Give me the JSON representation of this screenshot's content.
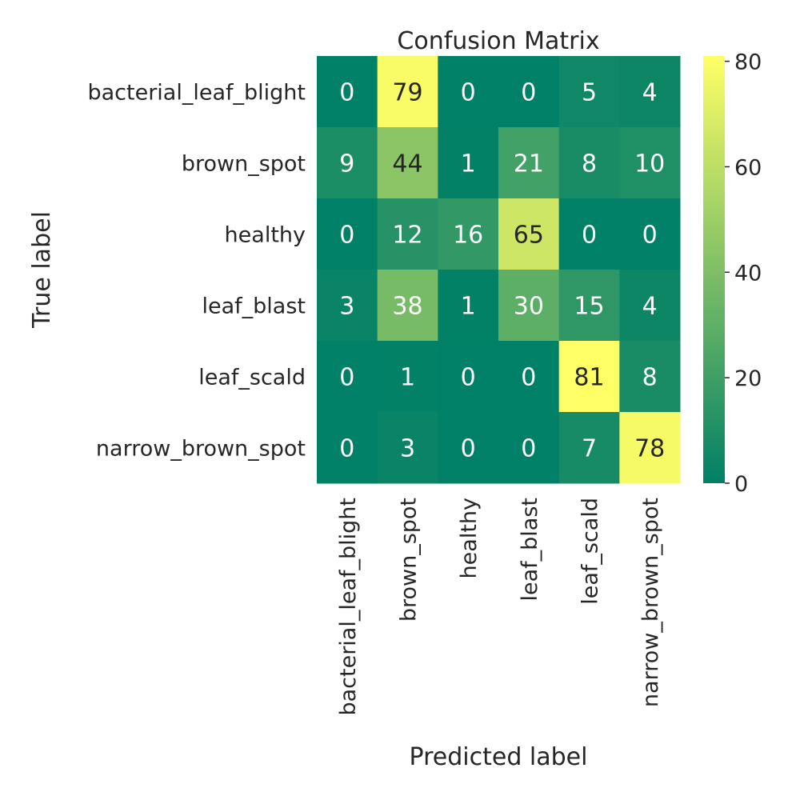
{
  "chart_data": {
    "type": "heatmap",
    "title": "Confusion Matrix",
    "xlabel": "Predicted label",
    "ylabel": "True label",
    "x_categories": [
      "bacterial_leaf_blight",
      "brown_spot",
      "healthy",
      "leaf_blast",
      "leaf_scald",
      "narrow_brown_spot"
    ],
    "y_categories": [
      "bacterial_leaf_blight",
      "brown_spot",
      "healthy",
      "leaf_blast",
      "leaf_scald",
      "narrow_brown_spot"
    ],
    "values": [
      [
        0,
        79,
        0,
        0,
        5,
        4
      ],
      [
        9,
        44,
        1,
        21,
        8,
        10
      ],
      [
        0,
        12,
        16,
        65,
        0,
        0
      ],
      [
        3,
        38,
        1,
        30,
        15,
        4
      ],
      [
        0,
        1,
        0,
        0,
        81,
        8
      ],
      [
        0,
        3,
        0,
        0,
        7,
        78
      ]
    ],
    "colorbar": {
      "colormap": "summer",
      "vmin": 0,
      "vmax": 81,
      "ticks": [
        0,
        20,
        40,
        60,
        80
      ]
    },
    "colors": {
      "low": "#008066",
      "high": "#ffff66",
      "text": "#262626"
    }
  }
}
